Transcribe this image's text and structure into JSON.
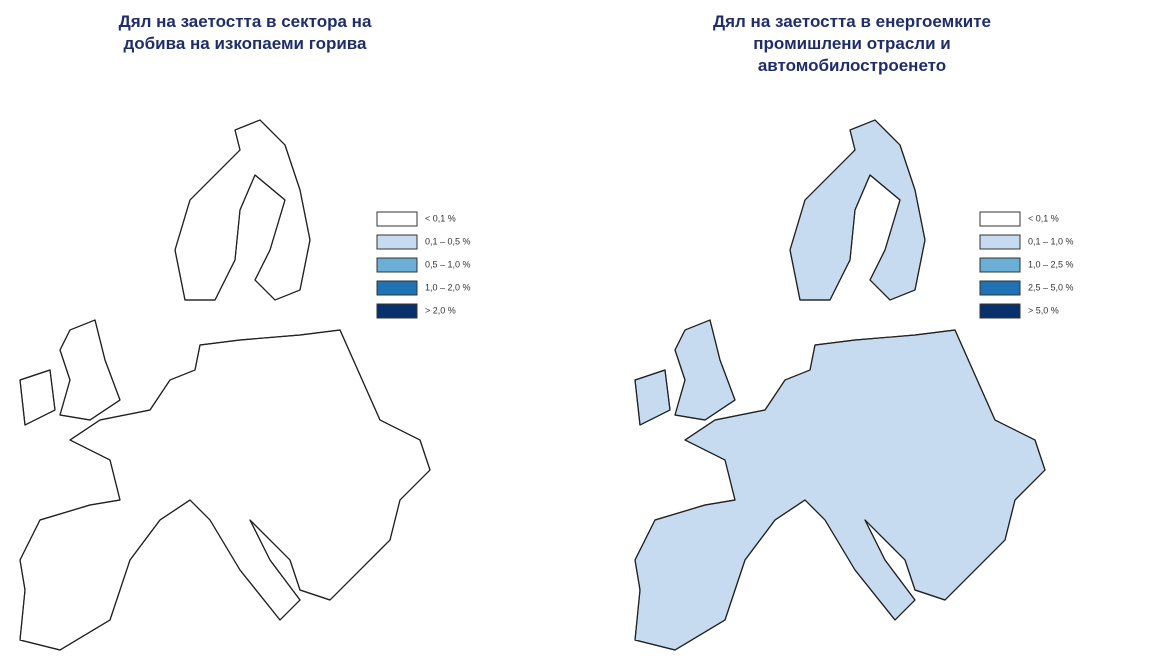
{
  "maps": [
    {
      "title_lines": [
        "Дял на заетостта  в сектора на",
        "добива на изкопаеми горива"
      ],
      "legend": [
        {
          "label": "< 0,1 %",
          "color": "#ffffff"
        },
        {
          "label": "0,1 – 0,5 %",
          "color": "#c6dbef"
        },
        {
          "label": "0,5 – 1,0 %",
          "color": "#6baed6"
        },
        {
          "label": "1,0 – 2,0 %",
          "color": "#2171b5"
        },
        {
          "label": "> 2,0 %",
          "color": "#08306b"
        }
      ]
    },
    {
      "title_lines": [
        "Дял на заетостта  в енергоемките",
        "промишлени отрасли и",
        "автомобилостроенето"
      ],
      "legend": [
        {
          "label": "< 0,1 %",
          "color": "#ffffff"
        },
        {
          "label": "0,1 – 1,0 %",
          "color": "#c6dbef"
        },
        {
          "label": "1,0 – 2,5 %",
          "color": "#6baed6"
        },
        {
          "label": "2,5 – 5,0 %",
          "color": "#2171b5"
        },
        {
          "label": "> 5,0 %",
          "color": "#08306b"
        }
      ]
    }
  ]
}
